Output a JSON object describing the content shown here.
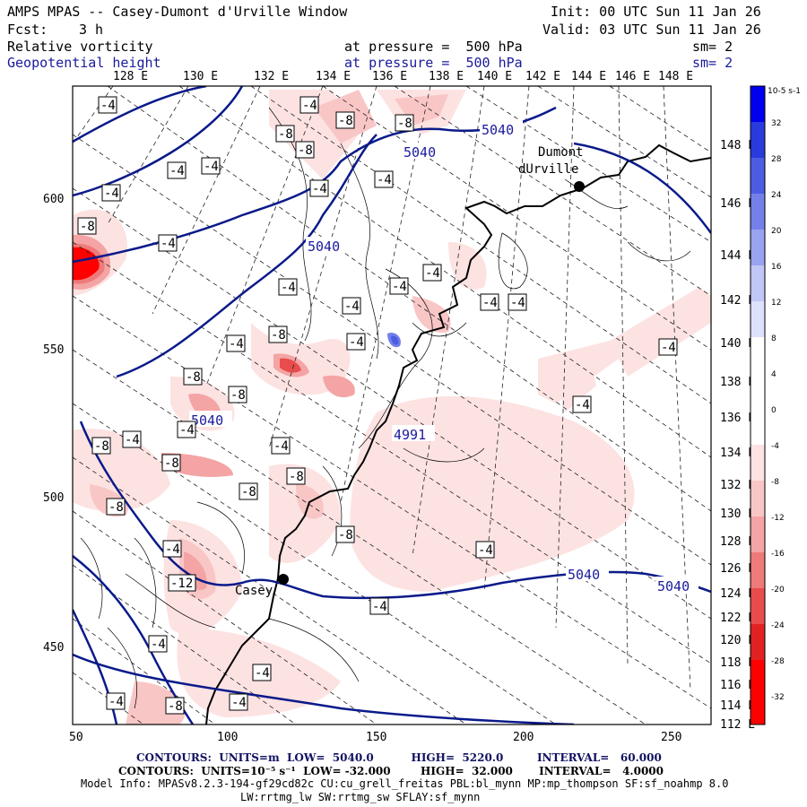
{
  "header": {
    "title": "AMPS MPAS -- Casey-Dumont d'Urville Window",
    "init": "Init: 00 UTC Sun 11 Jan 26",
    "fcst_label": "Fcst:",
    "fcst_value": "3 h",
    "valid": "Valid: 03 UTC Sun 11 Jan 26",
    "field1": {
      "name": "Relative vorticity",
      "pressure": "at pressure =  500 hPa",
      "sm": "sm= 2"
    },
    "field2": {
      "name": "Geopotential height",
      "pressure": "at pressure =  500 hPa",
      "sm": "sm= 2"
    }
  },
  "colors": {
    "contour_blue": "#0a1a8a",
    "neg_shades": [
      "#fde2e2",
      "#f9c6c6",
      "#f4a4a4",
      "#ee7a7a",
      "#e84c4c",
      "#e22222",
      "#ff0000"
    ],
    "pos_shades": [
      "#dde1fb",
      "#c0c6f6",
      "#9aa3f0",
      "#7480ea",
      "#4d5de3",
      "#2a3bdd",
      "#0000ee"
    ],
    "station": "#000000"
  },
  "map": {
    "top_longitudes": [
      "128 E",
      "130 E",
      "132 E",
      "134 E",
      "136 E",
      "138 E",
      "140 E",
      "142 E",
      "144 E",
      "146 E",
      "148 E"
    ],
    "right_longitudes": [
      "148 E",
      "146 E",
      "144 E",
      "142 E",
      "140 E",
      "138 E",
      "136 E",
      "134 E",
      "132 E",
      "130 E",
      "128 E",
      "126 E",
      "124 E",
      "122 E",
      "120 E",
      "118 E",
      "116 E",
      "114 E",
      "112 E"
    ],
    "x_ticks": [
      "50",
      "100",
      "150",
      "200",
      "250"
    ],
    "y_ticks": [
      "600",
      "550",
      "500",
      "450"
    ],
    "stations": [
      {
        "name": "Casey",
        "label": "Casey"
      },
      {
        "name": "Dumont dUrville",
        "label_line1": "Dumont",
        "label_line2": "dUrville"
      }
    ],
    "height_labels": [
      "5040",
      "5040",
      "5040",
      "5040",
      "5040",
      "5040",
      "4991"
    ],
    "vorticity_box_labels": [
      "-4",
      "-8",
      "-12"
    ]
  },
  "colorbar": {
    "units": "10-5 s-1",
    "ticks": [
      "32",
      "28",
      "24",
      "20",
      "16",
      "12",
      "8",
      "4",
      "0",
      "-4",
      "-8",
      "-12",
      "-16",
      "-20",
      "-24",
      "-28",
      "-32"
    ]
  },
  "footer": {
    "line1": "CONTOURS:  UNITS=m  LOW=  5040.0          HIGH=  5220.0         INTERVAL=   60.000",
    "line2": "CONTOURS:  UNITS=10⁻⁵ s⁻¹  LOW= -32.000        HIGH=  32.000       INTERVAL=   4.0000",
    "model_info": "Model Info: MPASv8.2.3-194-gf29cd82c CU:cu_grell_freitas PBL:bl_mynn MP:mp_thompson SF:sf_noahmp 8.0",
    "model_info2": "LW:rrtmg_lw SW:rrtmg_sw SFLAY:sf_mynn"
  }
}
